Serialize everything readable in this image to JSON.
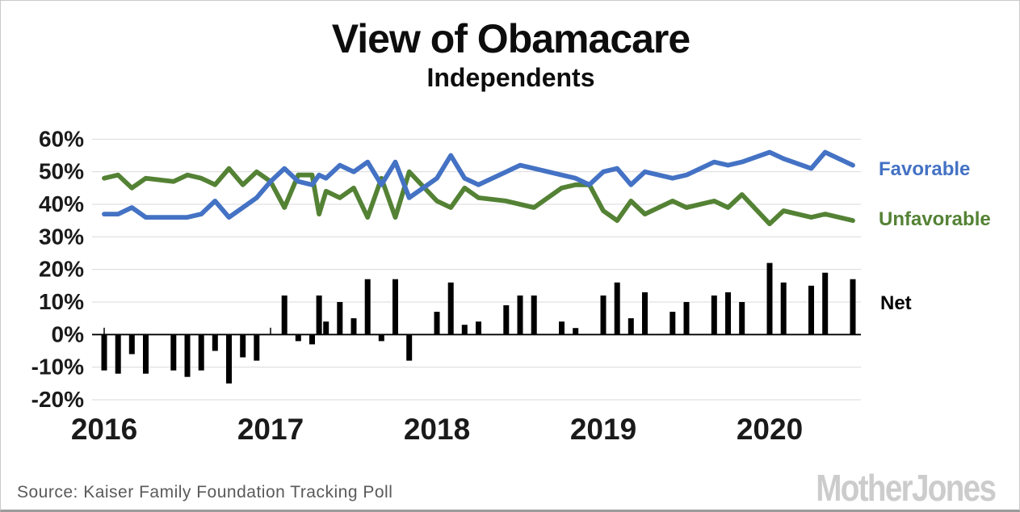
{
  "header": {
    "title": "View of Obamacare",
    "subtitle": "Independents"
  },
  "legend": {
    "favorable_label": "Favorable",
    "unfavorable_label": "Unfavorable",
    "net_label": "Net"
  },
  "source": {
    "text": "Source: Kaiser Family Foundation Tracking Poll"
  },
  "branding": {
    "logo_text": "MotherJones"
  },
  "colors": {
    "favorable": "#4472c4",
    "unfavorable": "#548235",
    "net": "#000000",
    "grid": "#d9d9d9",
    "axis": "#000000",
    "tick_label": "#1a1a1a"
  },
  "chart_data": {
    "type": "line+bar combo (lines: Favorable, Unfavorable; bars: Net = Favorable - Unfavorable)",
    "title": "View of Obamacare",
    "subtitle": "Independents",
    "ylim": [
      -20,
      60
    ],
    "grid": "horizontal gridlines every 10%, zero axis emphasized",
    "legend_position": "right of plot, colored text labels",
    "y_axis": {
      "ticks": [
        {
          "v": 60,
          "label": "60%"
        },
        {
          "v": 50,
          "label": "50%"
        },
        {
          "v": 40,
          "label": "40%"
        },
        {
          "v": 30,
          "label": "30%"
        },
        {
          "v": 20,
          "label": "20%"
        },
        {
          "v": 10,
          "label": "10%"
        },
        {
          "v": 0,
          "label": "0%"
        },
        {
          "v": -10,
          "label": "-10%"
        },
        {
          "v": -20,
          "label": "-20%"
        }
      ]
    },
    "x_axis": {
      "note": "m = months since Jan 2016; year ticks at January of each year",
      "years": [
        {
          "label": "2016",
          "m": 0
        },
        {
          "label": "2017",
          "m": 12
        },
        {
          "label": "2018",
          "m": 24
        },
        {
          "label": "2019",
          "m": 36
        },
        {
          "label": "2020",
          "m": 48
        }
      ]
    },
    "series": [
      {
        "name": "Favorable",
        "style": "line",
        "color_key": "favorable"
      },
      {
        "name": "Unfavorable",
        "style": "line",
        "color_key": "unfavorable"
      },
      {
        "name": "Net",
        "style": "bar",
        "color_key": "net"
      }
    ],
    "points": [
      {
        "date": "Jan 2016",
        "m": 0,
        "favorable": 37,
        "unfavorable": 48,
        "net": -11
      },
      {
        "date": "Feb 2016",
        "m": 1,
        "favorable": 37,
        "unfavorable": 49,
        "net": -12
      },
      {
        "date": "Mar 2016",
        "m": 2,
        "favorable": 39,
        "unfavorable": 45,
        "net": -6
      },
      {
        "date": "Apr 2016",
        "m": 3,
        "favorable": 36,
        "unfavorable": 48,
        "net": -12
      },
      {
        "date": "Jun 2016",
        "m": 5,
        "favorable": 36,
        "unfavorable": 47,
        "net": -11
      },
      {
        "date": "Jul 2016",
        "m": 6,
        "favorable": 36,
        "unfavorable": 49,
        "net": -13
      },
      {
        "date": "Aug 2016",
        "m": 7,
        "favorable": 37,
        "unfavorable": 48,
        "net": -11
      },
      {
        "date": "Sep 2016",
        "m": 8,
        "favorable": 41,
        "unfavorable": 46,
        "net": -5
      },
      {
        "date": "Oct 2016",
        "m": 9,
        "favorable": 36,
        "unfavorable": 51,
        "net": -15
      },
      {
        "date": "Nov 2016",
        "m": 10,
        "favorable": 39,
        "unfavorable": 46,
        "net": -7
      },
      {
        "date": "Dec 2016",
        "m": 11,
        "favorable": 42,
        "unfavorable": 50,
        "net": -8
      },
      {
        "date": "Jan 2017",
        "m": 12,
        "favorable": 47,
        "unfavorable": 47,
        "net": 0
      },
      {
        "date": "Feb 2017",
        "m": 13,
        "favorable": 51,
        "unfavorable": 39,
        "net": 12
      },
      {
        "date": "Mar 2017",
        "m": 14,
        "favorable": 47,
        "unfavorable": 49,
        "net": -2
      },
      {
        "date": "Apr 2017",
        "m": 15,
        "favorable": 46,
        "unfavorable": 49,
        "net": -3
      },
      {
        "date": "Late Apr 2017",
        "m": 15.5,
        "favorable": 49,
        "unfavorable": 37,
        "net": 12
      },
      {
        "date": "May 2017",
        "m": 16,
        "favorable": 48,
        "unfavorable": 44,
        "net": 4
      },
      {
        "date": "Jun 2017",
        "m": 17,
        "favorable": 52,
        "unfavorable": 42,
        "net": 10
      },
      {
        "date": "Jul 2017",
        "m": 18,
        "favorable": 50,
        "unfavorable": 45,
        "net": 5
      },
      {
        "date": "Aug 2017",
        "m": 19,
        "favorable": 53,
        "unfavorable": 36,
        "net": 17
      },
      {
        "date": "Sep 2017",
        "m": 20,
        "favorable": 46,
        "unfavorable": 48,
        "net": -2
      },
      {
        "date": "Oct 2017",
        "m": 21,
        "favorable": 53,
        "unfavorable": 36,
        "net": 17
      },
      {
        "date": "Nov 2017",
        "m": 22,
        "favorable": 42,
        "unfavorable": 50,
        "net": -8
      },
      {
        "date": "Jan 2018",
        "m": 24,
        "favorable": 48,
        "unfavorable": 41,
        "net": 7
      },
      {
        "date": "Feb 2018",
        "m": 25,
        "favorable": 55,
        "unfavorable": 39,
        "net": 16
      },
      {
        "date": "Mar 2018",
        "m": 26,
        "favorable": 48,
        "unfavorable": 45,
        "net": 3
      },
      {
        "date": "Apr 2018",
        "m": 27,
        "favorable": 46,
        "unfavorable": 42,
        "net": 4
      },
      {
        "date": "Jun 2018",
        "m": 29,
        "favorable": 50,
        "unfavorable": 41,
        "net": 9
      },
      {
        "date": "Jul 2018",
        "m": 30,
        "favorable": 52,
        "unfavorable": 40,
        "net": 12
      },
      {
        "date": "Aug 2018",
        "m": 31,
        "favorable": 51,
        "unfavorable": 39,
        "net": 12
      },
      {
        "date": "Oct 2018",
        "m": 33,
        "favorable": 49,
        "unfavorable": 45,
        "net": 4
      },
      {
        "date": "Nov 2018",
        "m": 34,
        "favorable": 48,
        "unfavorable": 46,
        "net": 2
      },
      {
        "date": "Dec 2018",
        "m": 35,
        "favorable": 46,
        "unfavorable": 46,
        "net": 0
      },
      {
        "date": "Jan 2019",
        "m": 36,
        "favorable": 50,
        "unfavorable": 38,
        "net": 12
      },
      {
        "date": "Feb 2019",
        "m": 37,
        "favorable": 51,
        "unfavorable": 35,
        "net": 16
      },
      {
        "date": "Mar 2019",
        "m": 38,
        "favorable": 46,
        "unfavorable": 41,
        "net": 5
      },
      {
        "date": "Apr 2019",
        "m": 39,
        "favorable": 50,
        "unfavorable": 37,
        "net": 13
      },
      {
        "date": "Jun 2019",
        "m": 41,
        "favorable": 48,
        "unfavorable": 41,
        "net": 7
      },
      {
        "date": "Jul 2019",
        "m": 42,
        "favorable": 49,
        "unfavorable": 39,
        "net": 10
      },
      {
        "date": "Sep 2019",
        "m": 44,
        "favorable": 53,
        "unfavorable": 41,
        "net": 12
      },
      {
        "date": "Oct 2019",
        "m": 45,
        "favorable": 52,
        "unfavorable": 39,
        "net": 13
      },
      {
        "date": "Nov 2019",
        "m": 46,
        "favorable": 53,
        "unfavorable": 43,
        "net": 10
      },
      {
        "date": "Jan 2020",
        "m": 48,
        "favorable": 56,
        "unfavorable": 34,
        "net": 22
      },
      {
        "date": "Feb 2020",
        "m": 49,
        "favorable": 54,
        "unfavorable": 38,
        "net": 16
      },
      {
        "date": "Apr 2020",
        "m": 51,
        "favorable": 51,
        "unfavorable": 36,
        "net": 15
      },
      {
        "date": "May 2020",
        "m": 52,
        "favorable": 56,
        "unfavorable": 37,
        "net": 19
      },
      {
        "date": "Jul 2020",
        "m": 54,
        "favorable": 52,
        "unfavorable": 35,
        "net": 17
      }
    ]
  }
}
